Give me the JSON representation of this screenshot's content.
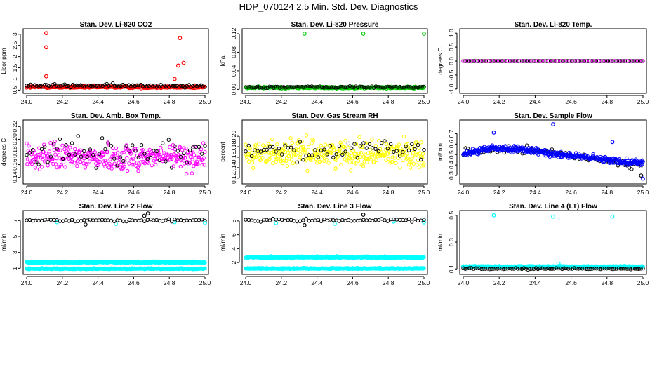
{
  "title": "HDP_070124  2.5 Min. Std. Dev. Diagnostics",
  "colors": {
    "secondary": "#000000",
    "red": "#ff0000",
    "green": "#00cc00",
    "magenta": "#ff00ff",
    "yellow": "#ffff00",
    "blue": "#0000ff",
    "cyan": "#00ffff"
  },
  "chart_data": [
    {
      "id": "co2",
      "type": "scatter",
      "title": "Stan. Dev. Li-820 CO2",
      "ylabel": "Licor ppm",
      "xlim": [
        24.0,
        25.0
      ],
      "ylim": [
        0.45,
        3.15
      ],
      "xticks": [
        24.0,
        24.2,
        24.4,
        24.6,
        24.8,
        25.0
      ],
      "xtick_labels": [
        "24.0",
        "24.2",
        "24.4",
        "24.6",
        "24.8",
        "25.0"
      ],
      "yticks": [
        0.5,
        1.0,
        1.5,
        2.0,
        2.5,
        3.0
      ],
      "ytick_labels": [
        "0.5",
        "1",
        "1.5",
        "2",
        "2.5",
        "3"
      ],
      "series": [
        {
          "name": "primary",
          "color": "red",
          "count": 360,
          "base": 0.64,
          "noise": 0.05,
          "outliers": [
            [
              24.11,
              3.05
            ],
            [
              24.11,
              2.42
            ],
            [
              24.11,
              1.12
            ],
            [
              24.86,
              2.83
            ],
            [
              24.88,
              1.72
            ],
            [
              24.85,
              1.6
            ],
            [
              24.83,
              1.0
            ]
          ]
        },
        {
          "name": "secondary",
          "color": "secondary",
          "count": 90,
          "base": 0.7,
          "noise": 0.07,
          "outliers": []
        }
      ]
    },
    {
      "id": "pressure",
      "type": "scatter",
      "title": "Stan. Dev. Li-820 Pressure",
      "ylabel": "kPa",
      "xlim": [
        24.0,
        25.0
      ],
      "ylim": [
        -0.004,
        0.126
      ],
      "xticks": [
        24.0,
        24.2,
        24.4,
        24.6,
        24.8,
        25.0
      ],
      "xtick_labels": [
        "24.0",
        "24.2",
        "24.4",
        "24.6",
        "24.8",
        "25.0"
      ],
      "yticks": [
        0.0,
        0.04,
        0.08,
        0.12
      ],
      "ytick_labels": [
        "0.00",
        "0.04",
        "0.08",
        "0.12"
      ],
      "series": [
        {
          "name": "primary",
          "color": "green",
          "count": 360,
          "base": 0.004,
          "noise": 0.002,
          "outliers": [
            [
              24.33,
              0.12
            ],
            [
              24.66,
              0.12
            ],
            [
              25.0,
              0.12
            ]
          ]
        },
        {
          "name": "secondary",
          "color": "secondary",
          "count": 90,
          "base": 0.005,
          "noise": 0.002,
          "outliers": []
        }
      ]
    },
    {
      "id": "temp",
      "type": "scatter",
      "title": "Stan. Dev. Li-820 Temp.",
      "ylabel": "degrees C",
      "xlim": [
        24.0,
        25.0
      ],
      "ylim": [
        -1.08,
        1.08
      ],
      "xticks": [
        24.0,
        24.2,
        24.4,
        24.6,
        24.8,
        25.0
      ],
      "xtick_labels": [
        "24.0",
        "24.2",
        "24.4",
        "24.6",
        "24.8",
        "25.0"
      ],
      "yticks": [
        -1.0,
        -0.5,
        0.0,
        0.5,
        1.0
      ],
      "ytick_labels": [
        "-1.0",
        "-0.5",
        "0.0",
        "0.5",
        "1.0"
      ],
      "series": [
        {
          "name": "secondary",
          "color": "secondary",
          "count": 120,
          "base": 0.0,
          "noise": 0.0,
          "outliers": []
        },
        {
          "name": "primary",
          "color": "magenta",
          "count": 45,
          "base": 0.0,
          "noise": 0.0,
          "outliers": []
        }
      ]
    },
    {
      "id": "boxtemp",
      "type": "scatter",
      "title": "Stan. Dev. Amb. Box Temp.",
      "ylabel": "degrees C",
      "xlim": [
        24.0,
        25.0
      ],
      "ylim": [
        0.133,
        0.227
      ],
      "xticks": [
        24.0,
        24.2,
        24.4,
        24.6,
        24.8,
        25.0
      ],
      "xtick_labels": [
        "24.0",
        "24.2",
        "24.4",
        "24.6",
        "24.8",
        "25.0"
      ],
      "yticks": [
        0.14,
        0.16,
        0.18,
        0.2,
        0.22
      ],
      "ytick_labels": [
        "0.14",
        "0.16",
        "0.18",
        "0.20",
        "0.22"
      ],
      "series": [
        {
          "name": "primary",
          "color": "magenta",
          "count": 330,
          "base": 0.172,
          "noise": 0.02,
          "outliers": []
        },
        {
          "name": "secondary",
          "color": "secondary",
          "count": 60,
          "base": 0.178,
          "noise": 0.022,
          "outliers": []
        }
      ]
    },
    {
      "id": "rh",
      "type": "scatter",
      "title": "Stan. Dev. Gas Stream RH",
      "ylabel": "percent",
      "xlim": [
        24.0,
        25.0
      ],
      "ylim": [
        0.113,
        0.227
      ],
      "xticks": [
        24.0,
        24.2,
        24.4,
        24.6,
        24.8,
        25.0
      ],
      "xtick_labels": [
        "24.0",
        "24.2",
        "24.4",
        "24.6",
        "24.8",
        "25.0"
      ],
      "yticks": [
        0.12,
        0.14,
        0.16,
        0.18,
        0.2
      ],
      "ytick_labels": [
        "0.12",
        "0.14",
        "0.16",
        "0.18",
        "0.20"
      ],
      "series": [
        {
          "name": "primary",
          "color": "yellow",
          "count": 330,
          "base": 0.168,
          "noise": 0.024,
          "outliers": []
        },
        {
          "name": "secondary",
          "color": "secondary",
          "count": 60,
          "base": 0.172,
          "noise": 0.02,
          "outliers": []
        }
      ]
    },
    {
      "id": "sampleflow",
      "type": "scatter",
      "title": "Stan. Dev. Sample Flow",
      "ylabel": "ml/min",
      "xlim": [
        24.0,
        25.0
      ],
      "ylim": [
        0.24,
        0.81
      ],
      "xticks": [
        24.0,
        24.2,
        24.4,
        24.6,
        24.8,
        25.0
      ],
      "xtick_labels": [
        "24.0",
        "24.2",
        "24.4",
        "24.6",
        "24.8",
        "25.0"
      ],
      "yticks": [
        0.3,
        0.4,
        0.5,
        0.6,
        0.7
      ],
      "ytick_labels": [
        "0.3",
        "0.4",
        "0.5",
        "0.6",
        "0.7"
      ],
      "series": [
        {
          "name": "secondary",
          "color": "secondary",
          "count": 80,
          "base": 0.0,
          "noise": 0.035,
          "trend": [
            [
              24.0,
              0.52
            ],
            [
              24.25,
              0.55
            ],
            [
              24.5,
              0.52
            ],
            [
              24.75,
              0.45
            ],
            [
              25.0,
              0.4
            ]
          ],
          "outliers": [
            [
              24.99,
              0.3
            ]
          ]
        },
        {
          "name": "primary",
          "color": "blue",
          "count": 420,
          "base": 0.0,
          "noise": 0.028,
          "trend": [
            [
              24.0,
              0.5
            ],
            [
              24.15,
              0.56
            ],
            [
              24.3,
              0.55
            ],
            [
              24.5,
              0.51
            ],
            [
              24.7,
              0.47
            ],
            [
              24.85,
              0.44
            ],
            [
              25.0,
              0.42
            ]
          ],
          "outliers": [
            [
              24.17,
              0.71
            ],
            [
              24.5,
              0.79
            ],
            [
              24.83,
              0.62
            ],
            [
              25.0,
              0.27
            ]
          ]
        }
      ]
    },
    {
      "id": "line2",
      "type": "scatter",
      "title": "Stan. Dev. Line 2 Flow",
      "ylabel": "ml/min",
      "xlim": [
        24.0,
        25.0
      ],
      "ylim": [
        0.5,
        8.0
      ],
      "xticks": [
        24.0,
        24.2,
        24.4,
        24.6,
        24.8,
        25.0
      ],
      "xtick_labels": [
        "24.0",
        "24.2",
        "24.4",
        "24.6",
        "24.8",
        "25.0"
      ],
      "yticks": [
        1,
        3,
        5,
        7
      ],
      "ytick_labels": [
        "1",
        "3",
        "5",
        "7"
      ],
      "series": [
        {
          "name": "primary-upper",
          "color": "cyan",
          "count": 420,
          "base": 1.75,
          "noise": 0.1,
          "outliers": [
            [
              24.17,
              6.8
            ],
            [
              24.5,
              6.6
            ],
            [
              24.83,
              6.8
            ],
            [
              25.0,
              6.7
            ]
          ]
        },
        {
          "name": "primary-lower",
          "color": "cyan",
          "count": 420,
          "base": 0.95,
          "noise": 0.06,
          "outliers": []
        },
        {
          "name": "secondary",
          "color": "secondary",
          "count": 60,
          "base": 7.05,
          "noise": 0.15,
          "outliers": [
            [
              24.33,
              6.5
            ],
            [
              24.66,
              7.6
            ],
            [
              24.68,
              7.9
            ]
          ]
        }
      ]
    },
    {
      "id": "line3",
      "type": "scatter",
      "title": "Stan. Dev. Line 3 Flow",
      "ylabel": "ml/min",
      "xlim": [
        24.0,
        25.0
      ],
      "ylim": [
        0.6,
        9.2
      ],
      "xticks": [
        24.0,
        24.2,
        24.4,
        24.6,
        24.8,
        25.0
      ],
      "xtick_labels": [
        "24.0",
        "24.2",
        "24.4",
        "24.6",
        "24.8",
        "25.0"
      ],
      "yticks": [
        2,
        4,
        6,
        8
      ],
      "ytick_labels": [
        "2",
        "4",
        "6",
        "8"
      ],
      "series": [
        {
          "name": "primary-upper",
          "color": "cyan",
          "count": 420,
          "base": 2.75,
          "noise": 0.14,
          "outliers": [
            [
              24.17,
              7.7
            ],
            [
              24.5,
              7.6
            ],
            [
              24.83,
              7.9
            ],
            [
              25.0,
              7.8
            ]
          ]
        },
        {
          "name": "primary-lower",
          "color": "cyan",
          "count": 420,
          "base": 1.15,
          "noise": 0.08,
          "outliers": []
        },
        {
          "name": "secondary",
          "color": "secondary",
          "count": 60,
          "base": 8.1,
          "noise": 0.25,
          "outliers": [
            [
              24.33,
              7.4
            ],
            [
              24.66,
              8.9
            ]
          ]
        }
      ]
    },
    {
      "id": "line4",
      "type": "scatter",
      "title": "Stan. Dev. Line 4 (LT) Flow",
      "ylabel": "ml/min",
      "xlim": [
        24.0,
        25.0
      ],
      "ylim": [
        0.075,
        0.52
      ],
      "xticks": [
        24.0,
        24.2,
        24.4,
        24.6,
        24.8,
        25.0
      ],
      "xtick_labels": [
        "24.0",
        "24.2",
        "24.4",
        "24.6",
        "24.8",
        "25.0"
      ],
      "yticks": [
        0.1,
        0.3,
        0.5
      ],
      "ytick_labels": [
        "0.1",
        "0.3",
        "0.5"
      ],
      "series": [
        {
          "name": "primary",
          "color": "cyan",
          "count": 420,
          "base": 0.118,
          "noise": 0.004,
          "outliers": [
            [
              24.17,
              0.5
            ],
            [
              24.5,
              0.49
            ],
            [
              24.83,
              0.49
            ],
            [
              24.53,
              0.14
            ],
            [
              24.0,
              0.12
            ]
          ]
        },
        {
          "name": "secondary",
          "color": "secondary",
          "count": 90,
          "base": 0.102,
          "noise": 0.005,
          "outliers": []
        }
      ]
    }
  ]
}
